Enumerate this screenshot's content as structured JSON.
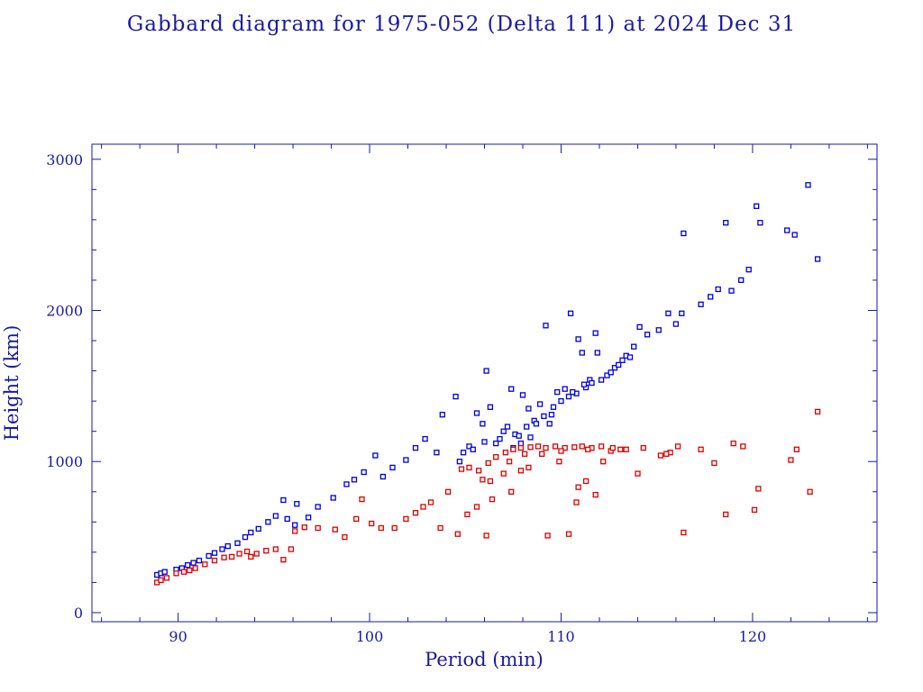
{
  "chart_data": {
    "type": "scatter",
    "title": "Gabbard diagram for 1975-052 (Delta 111) at 2024 Dec 31",
    "xlabel": "Period (min)",
    "ylabel": "Height (km)",
    "xlim": [
      85.5,
      126.5
    ],
    "ylim": [
      -60,
      3100
    ],
    "x_ticks": [
      90,
      100,
      110,
      120
    ],
    "y_ticks": [
      0,
      1000,
      2000,
      3000
    ],
    "grid": false,
    "colors": {
      "axis": "#1a1aa0",
      "apogee": "#0000dd",
      "perigee": "#dd0000"
    },
    "series": [
      {
        "color": "#0000dd",
        "points": [
          [
            88.9,
            250
          ],
          [
            89.1,
            260
          ],
          [
            89.3,
            270
          ],
          [
            89.9,
            285
          ],
          [
            90.2,
            295
          ],
          [
            90.5,
            315
          ],
          [
            90.8,
            330
          ],
          [
            91.1,
            345
          ],
          [
            91.6,
            375
          ],
          [
            91.9,
            395
          ],
          [
            92.3,
            420
          ],
          [
            92.6,
            440
          ],
          [
            93.1,
            460
          ],
          [
            93.5,
            500
          ],
          [
            93.8,
            530
          ],
          [
            94.2,
            555
          ],
          [
            94.7,
            600
          ],
          [
            95.1,
            640
          ],
          [
            95.5,
            745
          ],
          [
            95.7,
            620
          ],
          [
            96.1,
            580
          ],
          [
            96.2,
            720
          ],
          [
            96.8,
            630
          ],
          [
            97.3,
            700
          ],
          [
            98.1,
            760
          ],
          [
            98.8,
            850
          ],
          [
            99.2,
            880
          ],
          [
            99.7,
            930
          ],
          [
            100.3,
            1040
          ],
          [
            100.7,
            900
          ],
          [
            101.2,
            960
          ],
          [
            101.9,
            1010
          ],
          [
            102.4,
            1090
          ],
          [
            102.9,
            1150
          ],
          [
            103.5,
            1060
          ],
          [
            103.8,
            1310
          ],
          [
            104.5,
            1430
          ],
          [
            104.7,
            1000
          ],
          [
            105.2,
            1100
          ],
          [
            105.6,
            1320
          ],
          [
            105.9,
            1250
          ],
          [
            106.1,
            1600
          ],
          [
            106.3,
            1360
          ],
          [
            106.6,
            1120
          ],
          [
            107.0,
            1200
          ],
          [
            107.2,
            1230
          ],
          [
            107.4,
            1480
          ],
          [
            107.6,
            1180
          ],
          [
            108.0,
            1440
          ],
          [
            108.3,
            1350
          ],
          [
            108.6,
            1270
          ],
          [
            108.9,
            1380
          ],
          [
            109.2,
            1900
          ],
          [
            109.5,
            1310
          ],
          [
            109.8,
            1460
          ],
          [
            110.2,
            1480
          ],
          [
            110.5,
            1980
          ],
          [
            110.9,
            1810
          ],
          [
            111.1,
            1720
          ],
          [
            111.5,
            1540
          ],
          [
            111.8,
            1850
          ],
          [
            111.9,
            1720
          ],
          [
            112.4,
            1570
          ],
          [
            112.8,
            1620
          ],
          [
            113.2,
            1670
          ],
          [
            113.4,
            1700
          ],
          [
            113.8,
            1760
          ],
          [
            114.1,
            1890
          ],
          [
            114.5,
            1840
          ],
          [
            115.1,
            1870
          ],
          [
            115.6,
            1980
          ],
          [
            116.0,
            1910
          ],
          [
            116.3,
            1980
          ],
          [
            116.4,
            2510
          ],
          [
            117.3,
            2040
          ],
          [
            117.8,
            2090
          ],
          [
            118.2,
            2140
          ],
          [
            118.6,
            2580
          ],
          [
            118.9,
            2130
          ],
          [
            119.4,
            2200
          ],
          [
            119.8,
            2270
          ],
          [
            120.2,
            2690
          ],
          [
            120.4,
            2580
          ],
          [
            121.8,
            2530
          ],
          [
            122.2,
            2500
          ],
          [
            122.9,
            2830
          ],
          [
            123.4,
            2340
          ],
          [
            104.9,
            1060
          ],
          [
            105.4,
            1080
          ],
          [
            106.0,
            1130
          ],
          [
            106.8,
            1150
          ],
          [
            107.8,
            1170
          ],
          [
            108.2,
            1230
          ],
          [
            108.7,
            1250
          ],
          [
            109.1,
            1300
          ],
          [
            109.6,
            1360
          ],
          [
            110.0,
            1400
          ],
          [
            110.4,
            1430
          ],
          [
            110.8,
            1450
          ],
          [
            111.3,
            1490
          ],
          [
            111.6,
            1520
          ],
          [
            112.1,
            1540
          ],
          [
            112.6,
            1590
          ],
          [
            113.0,
            1640
          ],
          [
            113.6,
            1690
          ],
          [
            107.5,
            1090
          ],
          [
            107.9,
            1120
          ],
          [
            108.4,
            1160
          ],
          [
            109.4,
            1250
          ],
          [
            110.6,
            1460
          ],
          [
            111.2,
            1510
          ]
        ]
      },
      {
        "color": "#dd0000",
        "points": [
          [
            88.9,
            200
          ],
          [
            89.1,
            215
          ],
          [
            89.4,
            230
          ],
          [
            89.9,
            260
          ],
          [
            90.3,
            270
          ],
          [
            90.6,
            280
          ],
          [
            90.9,
            295
          ],
          [
            91.4,
            320
          ],
          [
            91.9,
            345
          ],
          [
            92.4,
            365
          ],
          [
            92.8,
            370
          ],
          [
            93.2,
            390
          ],
          [
            93.6,
            405
          ],
          [
            93.8,
            370
          ],
          [
            94.1,
            390
          ],
          [
            94.6,
            410
          ],
          [
            95.1,
            420
          ],
          [
            95.5,
            350
          ],
          [
            95.9,
            420
          ],
          [
            96.1,
            540
          ],
          [
            96.6,
            565
          ],
          [
            97.3,
            560
          ],
          [
            98.2,
            550
          ],
          [
            98.7,
            500
          ],
          [
            99.3,
            620
          ],
          [
            99.6,
            750
          ],
          [
            100.1,
            590
          ],
          [
            100.6,
            560
          ],
          [
            101.3,
            560
          ],
          [
            101.9,
            620
          ],
          [
            102.4,
            660
          ],
          [
            102.8,
            700
          ],
          [
            103.2,
            730
          ],
          [
            103.7,
            560
          ],
          [
            104.1,
            800
          ],
          [
            104.6,
            520
          ],
          [
            105.1,
            650
          ],
          [
            105.6,
            700
          ],
          [
            105.9,
            880
          ],
          [
            106.1,
            510
          ],
          [
            106.4,
            750
          ],
          [
            107.0,
            920
          ],
          [
            107.4,
            800
          ],
          [
            107.9,
            940
          ],
          [
            108.3,
            960
          ],
          [
            109.0,
            1050
          ],
          [
            109.3,
            510
          ],
          [
            109.9,
            1000
          ],
          [
            110.4,
            520
          ],
          [
            110.8,
            730
          ],
          [
            110.9,
            830
          ],
          [
            111.3,
            870
          ],
          [
            111.8,
            780
          ],
          [
            112.2,
            1000
          ],
          [
            112.6,
            1070
          ],
          [
            113.1,
            1080
          ],
          [
            114.0,
            920
          ],
          [
            115.2,
            1040
          ],
          [
            115.7,
            1060
          ],
          [
            116.1,
            1100
          ],
          [
            116.4,
            530
          ],
          [
            117.3,
            1080
          ],
          [
            118.0,
            990
          ],
          [
            118.6,
            650
          ],
          [
            119.0,
            1120
          ],
          [
            119.5,
            1100
          ],
          [
            120.1,
            680
          ],
          [
            120.3,
            820
          ],
          [
            122.0,
            1010
          ],
          [
            122.3,
            1080
          ],
          [
            123.0,
            800
          ],
          [
            123.4,
            1330
          ],
          [
            104.8,
            950
          ],
          [
            105.2,
            960
          ],
          [
            105.7,
            940
          ],
          [
            106.2,
            990
          ],
          [
            106.6,
            1030
          ],
          [
            107.1,
            1060
          ],
          [
            107.5,
            1080
          ],
          [
            107.9,
            1090
          ],
          [
            108.4,
            1095
          ],
          [
            108.8,
            1100
          ],
          [
            109.2,
            1090
          ],
          [
            109.7,
            1100
          ],
          [
            110.2,
            1090
          ],
          [
            110.7,
            1095
          ],
          [
            111.1,
            1100
          ],
          [
            111.6,
            1090
          ],
          [
            112.1,
            1100
          ],
          [
            112.7,
            1090
          ],
          [
            113.4,
            1080
          ],
          [
            114.3,
            1090
          ],
          [
            115.5,
            1050
          ],
          [
            107.3,
            1000
          ],
          [
            108.1,
            1050
          ],
          [
            110.0,
            1070
          ],
          [
            111.4,
            1080
          ],
          [
            106.3,
            870
          ]
        ]
      }
    ]
  }
}
